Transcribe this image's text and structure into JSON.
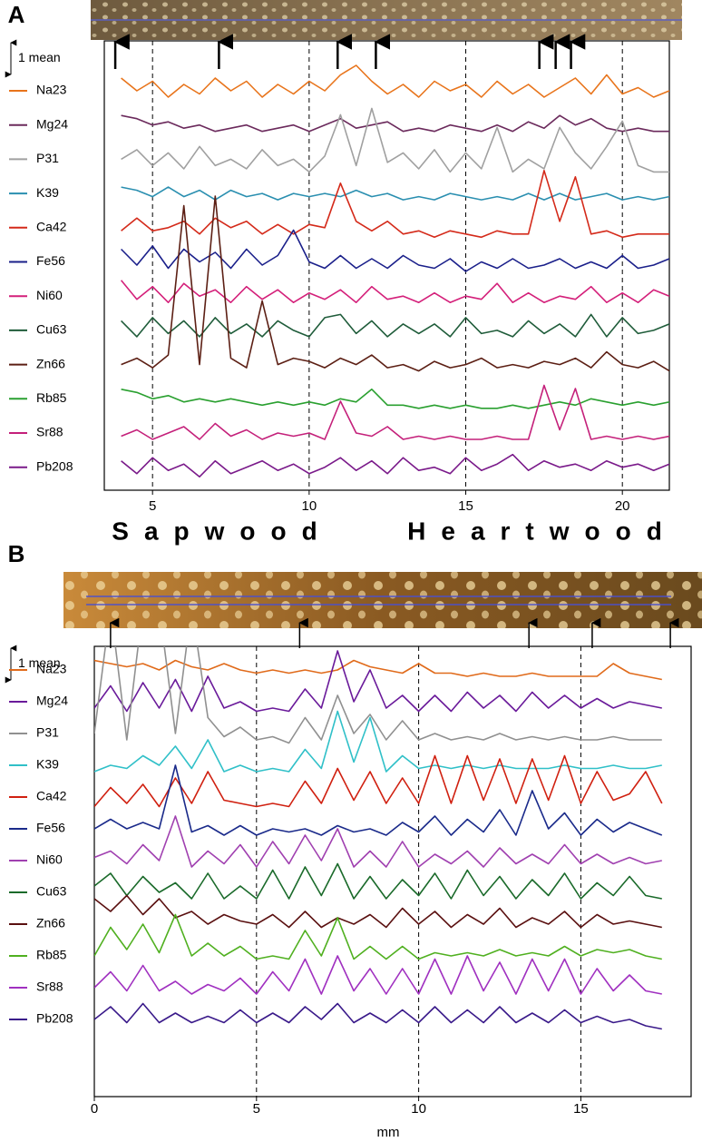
{
  "chart_data": [
    {
      "type": "line",
      "title": "A",
      "scale_bar": {
        "value": 1,
        "label": "1 mean"
      },
      "xlim": [
        3.46,
        21.5
      ],
      "xticks": [
        5,
        10,
        15,
        20
      ],
      "grid": true,
      "arrows": [
        3.81,
        7.12,
        10.91,
        12.13,
        17.35,
        17.87,
        18.36
      ],
      "x": [
        4,
        4.5,
        5,
        5.5,
        6,
        6.5,
        7,
        7.5,
        8,
        8.5,
        9,
        9.5,
        10,
        10.5,
        11,
        11.5,
        12,
        12.5,
        13,
        13.5,
        14,
        14.5,
        15,
        15.5,
        16,
        16.5,
        17,
        17.5,
        18,
        18.5,
        19,
        19.5,
        20,
        20.5,
        21,
        21.5
      ],
      "series": [
        {
          "name": "Na23",
          "color": "#e8741b",
          "values": [
            1.4,
            1.0,
            1.3,
            0.8,
            1.2,
            0.9,
            1.4,
            1.0,
            1.3,
            0.8,
            1.2,
            0.9,
            1.3,
            1.0,
            1.5,
            1.8,
            1.3,
            0.9,
            1.2,
            0.8,
            1.3,
            1.0,
            1.2,
            0.8,
            1.3,
            0.9,
            1.2,
            0.8,
            1.1,
            1.4,
            0.9,
            1.5,
            0.9,
            1.1,
            0.8,
            1.0
          ]
        },
        {
          "name": "Mg24",
          "color": "#6b2a5c",
          "values": [
            1.3,
            1.2,
            1.0,
            1.1,
            0.9,
            1.0,
            0.8,
            0.9,
            1.0,
            0.8,
            0.9,
            1.0,
            0.8,
            1.0,
            1.2,
            0.9,
            1.0,
            1.1,
            0.8,
            0.9,
            0.8,
            1.0,
            0.9,
            0.8,
            1.0,
            0.8,
            1.1,
            0.9,
            1.3,
            1.0,
            1.2,
            0.9,
            0.8,
            0.9,
            0.8,
            0.8
          ]
        },
        {
          "name": "P31",
          "color": "#a0a0a0",
          "values": [
            1.0,
            1.3,
            0.8,
            1.2,
            0.7,
            1.4,
            0.8,
            1.0,
            0.7,
            1.3,
            0.8,
            1.0,
            0.6,
            1.1,
            2.4,
            0.8,
            2.6,
            0.9,
            1.2,
            0.7,
            1.3,
            0.6,
            1.2,
            0.7,
            2.0,
            0.6,
            1.0,
            0.7,
            2.0,
            1.2,
            0.7,
            1.4,
            2.2,
            0.8,
            0.6,
            0.6
          ]
        },
        {
          "name": "K39",
          "color": "#2a8fb0",
          "values": [
            1.2,
            1.1,
            0.9,
            1.2,
            0.9,
            1.1,
            0.8,
            1.1,
            0.9,
            1.0,
            0.8,
            1.0,
            0.9,
            1.0,
            0.9,
            1.1,
            0.9,
            1.0,
            0.8,
            0.9,
            0.8,
            1.0,
            0.9,
            0.8,
            0.9,
            0.8,
            1.0,
            0.8,
            1.0,
            0.8,
            0.9,
            1.0,
            0.8,
            0.9,
            0.8,
            0.9
          ]
        },
        {
          "name": "Ca42",
          "color": "#d42a1a",
          "values": [
            0.9,
            1.3,
            0.9,
            1.0,
            1.2,
            0.8,
            1.3,
            1.0,
            1.2,
            0.8,
            1.1,
            0.8,
            1.1,
            1.0,
            2.4,
            1.2,
            0.9,
            1.2,
            0.8,
            0.9,
            0.7,
            0.9,
            0.8,
            0.7,
            0.9,
            0.8,
            0.8,
            2.8,
            1.2,
            2.6,
            0.8,
            0.9,
            0.7,
            0.8,
            0.8,
            0.8
          ]
        },
        {
          "name": "Fe56",
          "color": "#1a1f8a",
          "values": [
            1.4,
            0.9,
            1.5,
            0.8,
            1.4,
            1.0,
            1.3,
            0.8,
            1.4,
            0.9,
            1.2,
            2.0,
            1.0,
            0.8,
            1.2,
            0.8,
            1.1,
            0.8,
            1.2,
            0.9,
            0.8,
            1.1,
            0.7,
            1.0,
            0.8,
            1.1,
            0.8,
            0.9,
            1.1,
            0.8,
            1.0,
            0.8,
            1.2,
            0.8,
            0.9,
            1.1
          ]
        },
        {
          "name": "Ni60",
          "color": "#d4207a",
          "values": [
            1.5,
            0.9,
            1.3,
            0.8,
            1.4,
            1.0,
            1.2,
            0.8,
            1.3,
            0.9,
            1.2,
            0.8,
            1.1,
            0.9,
            1.2,
            0.8,
            1.3,
            0.9,
            1.0,
            0.8,
            1.1,
            0.8,
            1.0,
            0.9,
            1.4,
            0.8,
            1.1,
            0.8,
            1.0,
            0.9,
            1.3,
            0.8,
            1.1,
            0.8,
            1.2,
            1.0
          ]
        },
        {
          "name": "Cu63",
          "color": "#1f5c3a",
          "values": [
            1.3,
            0.8,
            1.4,
            0.9,
            1.3,
            0.8,
            1.4,
            0.9,
            1.2,
            0.8,
            1.3,
            1.0,
            0.8,
            1.4,
            1.5,
            0.9,
            1.3,
            0.8,
            1.2,
            0.9,
            1.2,
            0.8,
            1.4,
            0.9,
            1.0,
            0.8,
            1.3,
            0.9,
            1.2,
            0.8,
            1.5,
            0.8,
            1.4,
            0.9,
            1.0,
            1.2
          ]
        },
        {
          "name": "Zn66",
          "color": "#5c1f14",
          "values": [
            1.0,
            1.2,
            0.9,
            1.3,
            6.0,
            1.0,
            6.3,
            1.2,
            0.9,
            3.0,
            1.0,
            1.2,
            1.1,
            0.9,
            1.2,
            1.0,
            1.3,
            0.9,
            1.0,
            0.8,
            1.1,
            0.9,
            1.0,
            1.2,
            0.9,
            1.0,
            0.9,
            1.1,
            1.0,
            1.2,
            0.9,
            1.4,
            1.0,
            0.9,
            1.1,
            0.8
          ]
        },
        {
          "name": "Rb85",
          "color": "#2aa030",
          "values": [
            1.3,
            1.2,
            1.0,
            1.1,
            0.9,
            1.0,
            0.9,
            1.0,
            0.9,
            0.8,
            0.9,
            0.8,
            0.9,
            0.8,
            1.0,
            0.9,
            1.3,
            0.8,
            0.8,
            0.7,
            0.8,
            0.7,
            0.8,
            0.7,
            0.7,
            0.8,
            0.7,
            0.8,
            0.9,
            0.8,
            1.0,
            0.9,
            0.8,
            0.9,
            0.8,
            0.9
          ]
        },
        {
          "name": "Sr88",
          "color": "#c4207a",
          "values": [
            0.9,
            1.1,
            0.8,
            1.0,
            1.2,
            0.8,
            1.3,
            0.9,
            1.1,
            0.8,
            1.0,
            0.9,
            1.0,
            0.8,
            2.0,
            1.0,
            0.9,
            1.2,
            0.8,
            0.9,
            0.8,
            0.9,
            0.8,
            0.8,
            0.9,
            0.8,
            0.8,
            2.5,
            1.1,
            2.4,
            0.8,
            0.9,
            0.8,
            0.9,
            0.8,
            0.9
          ]
        },
        {
          "name": "Pb208",
          "color": "#7a1a8a",
          "values": [
            1.2,
            0.8,
            1.3,
            0.9,
            1.1,
            0.7,
            1.2,
            0.8,
            1.0,
            1.2,
            0.9,
            1.1,
            0.8,
            1.0,
            1.3,
            0.9,
            1.2,
            0.8,
            1.3,
            0.9,
            1.0,
            0.8,
            1.3,
            0.9,
            1.1,
            1.4,
            0.9,
            1.2,
            1.0,
            1.1,
            0.9,
            1.2,
            1.0,
            1.1,
            0.9,
            1.1
          ]
        }
      ]
    },
    {
      "type": "line",
      "title": "B",
      "photo_labels": [
        "Sapwood",
        "Heartwood"
      ],
      "scale_bar": {
        "value": 1,
        "label": "1 mean"
      },
      "xlabel": "mm",
      "xlim": [
        0,
        18.4
      ],
      "xticks": [
        0,
        5,
        10,
        15
      ],
      "grid": true,
      "arrows": [
        0.5,
        6.33,
        13.4,
        15.35,
        17.76
      ],
      "x": [
        0,
        0.5,
        1,
        1.5,
        2,
        2.5,
        3,
        3.5,
        4,
        4.5,
        5,
        5.5,
        6,
        6.5,
        7,
        7.5,
        8,
        8.5,
        9,
        9.5,
        10,
        10.5,
        11,
        11.5,
        12,
        12.5,
        13,
        13.5,
        14,
        14.5,
        15,
        15.5,
        16,
        16.5,
        17,
        17.5
      ],
      "series": [
        {
          "name": "Na23",
          "color": "#e06a1a",
          "values": [
            1.3,
            1.2,
            1.1,
            1.2,
            1.0,
            1.3,
            1.1,
            1.0,
            1.2,
            1.0,
            0.9,
            1.0,
            0.9,
            1.0,
            0.9,
            1.0,
            1.3,
            1.1,
            1.0,
            0.9,
            1.2,
            0.9,
            0.9,
            0.8,
            0.9,
            0.8,
            0.8,
            0.9,
            0.8,
            0.8,
            0.8,
            0.8,
            1.2,
            0.9,
            0.8,
            0.7
          ]
        },
        {
          "name": "Mg24",
          "color": "#6a1a9a",
          "values": [
            0.8,
            1.5,
            0.7,
            1.6,
            0.8,
            1.7,
            0.7,
            1.8,
            0.8,
            1.0,
            0.7,
            0.8,
            0.7,
            1.4,
            0.8,
            2.6,
            1.0,
            2.0,
            0.8,
            1.2,
            0.7,
            1.2,
            0.7,
            1.3,
            0.8,
            1.2,
            0.7,
            1.3,
            0.8,
            1.2,
            0.8,
            1.1,
            0.8,
            1.0,
            0.9,
            0.8
          ]
        },
        {
          "name": "P31",
          "color": "#909090",
          "values": [
            1.0,
            5.0,
            0.8,
            5.0,
            5.0,
            1.0,
            5.0,
            1.5,
            0.9,
            1.2,
            0.8,
            0.9,
            0.7,
            1.5,
            0.8,
            2.2,
            1.0,
            1.6,
            0.8,
            1.4,
            0.8,
            1.0,
            0.8,
            0.9,
            0.8,
            1.0,
            0.8,
            0.9,
            0.8,
            0.9,
            0.8,
            0.8,
            0.9,
            0.8,
            0.8,
            0.8
          ]
        },
        {
          "name": "K39",
          "color": "#30c0c8",
          "values": [
            0.8,
            1.0,
            0.9,
            1.3,
            1.0,
            1.6,
            0.9,
            1.8,
            0.8,
            1.0,
            0.8,
            0.9,
            0.8,
            1.5,
            0.9,
            2.7,
            1.1,
            2.5,
            0.8,
            1.3,
            0.9,
            1.0,
            0.9,
            1.0,
            0.9,
            1.0,
            0.9,
            0.9,
            0.9,
            1.0,
            0.9,
            0.9,
            1.0,
            0.9,
            0.9,
            1.0
          ]
        },
        {
          "name": "Ca42",
          "color": "#d02010",
          "values": [
            0.7,
            1.3,
            0.8,
            1.4,
            0.7,
            1.6,
            0.8,
            1.8,
            0.9,
            0.8,
            0.7,
            0.8,
            0.7,
            1.5,
            0.8,
            1.9,
            0.9,
            1.8,
            0.8,
            1.6,
            0.8,
            2.3,
            0.8,
            2.3,
            0.9,
            2.2,
            0.8,
            2.2,
            0.9,
            2.3,
            0.8,
            1.8,
            0.9,
            1.1,
            1.8,
            0.8
          ]
        },
        {
          "name": "Fe56",
          "color": "#1a2a8a",
          "values": [
            1.0,
            1.3,
            1.0,
            1.2,
            1.0,
            3.0,
            0.9,
            1.1,
            0.8,
            1.1,
            0.8,
            1.0,
            0.9,
            1.0,
            0.8,
            1.1,
            0.9,
            1.0,
            0.8,
            1.2,
            0.9,
            1.4,
            0.8,
            1.3,
            0.9,
            1.6,
            0.8,
            2.2,
            1.0,
            1.5,
            0.8,
            1.3,
            0.9,
            1.2,
            1.0,
            0.8
          ]
        },
        {
          "name": "Ni60",
          "color": "#a040b0",
          "values": [
            1.1,
            1.3,
            0.9,
            1.5,
            1.0,
            2.4,
            0.8,
            1.3,
            0.9,
            1.5,
            0.8,
            1.6,
            0.9,
            1.8,
            1.0,
            2.0,
            0.8,
            1.3,
            0.8,
            1.6,
            0.8,
            1.2,
            0.9,
            1.3,
            0.8,
            1.4,
            0.9,
            1.2,
            0.9,
            1.5,
            0.9,
            1.2,
            0.9,
            1.1,
            0.9,
            1.0
          ]
        },
        {
          "name": "Cu63",
          "color": "#1a6a2a",
          "values": [
            1.2,
            1.6,
            0.9,
            1.5,
            1.0,
            1.3,
            0.8,
            1.6,
            0.8,
            1.2,
            0.8,
            1.7,
            0.8,
            1.8,
            0.9,
            1.9,
            0.8,
            1.5,
            0.8,
            1.4,
            0.9,
            1.6,
            0.8,
            1.7,
            0.9,
            1.5,
            0.8,
            1.4,
            0.9,
            1.6,
            0.8,
            1.3,
            0.9,
            1.5,
            0.9,
            0.8
          ]
        },
        {
          "name": "Zn66",
          "color": "#5a1010",
          "values": [
            1.8,
            1.4,
            1.9,
            1.3,
            1.8,
            1.2,
            1.4,
            1.0,
            1.3,
            1.1,
            1.0,
            1.3,
            0.9,
            1.4,
            0.9,
            1.2,
            1.0,
            1.3,
            0.9,
            1.5,
            1.0,
            1.4,
            0.9,
            1.3,
            1.0,
            1.5,
            0.9,
            1.2,
            1.0,
            1.4,
            0.9,
            1.3,
            1.0,
            1.1,
            1.0,
            0.9
          ]
        },
        {
          "name": "Rb85",
          "color": "#50b020",
          "values": [
            1.0,
            1.9,
            1.2,
            2.0,
            1.1,
            2.3,
            1.0,
            1.4,
            1.0,
            1.3,
            0.9,
            1.0,
            0.9,
            1.8,
            1.0,
            2.2,
            0.9,
            1.3,
            0.9,
            1.3,
            0.9,
            1.1,
            1.0,
            1.1,
            1.0,
            1.2,
            1.0,
            1.1,
            1.0,
            1.3,
            1.0,
            1.2,
            1.1,
            1.2,
            1.0,
            0.9
          ]
        },
        {
          "name": "Sr88",
          "color": "#a030c0",
          "values": [
            1.0,
            1.5,
            0.9,
            1.7,
            0.9,
            1.2,
            0.8,
            1.1,
            0.9,
            1.3,
            0.8,
            1.5,
            0.9,
            1.9,
            0.8,
            2.0,
            0.9,
            1.6,
            0.8,
            1.6,
            0.8,
            1.9,
            0.8,
            2.0,
            0.9,
            1.8,
            0.8,
            1.9,
            0.9,
            1.9,
            0.8,
            1.6,
            0.9,
            1.4,
            0.9,
            0.8
          ]
        },
        {
          "name": "Pb208",
          "color": "#3a1a8a",
          "values": [
            1.0,
            1.4,
            0.9,
            1.5,
            0.9,
            1.2,
            0.9,
            1.1,
            0.9,
            1.3,
            0.9,
            1.2,
            0.9,
            1.4,
            1.0,
            1.5,
            0.9,
            1.2,
            0.9,
            1.3,
            0.9,
            1.4,
            0.9,
            1.3,
            0.9,
            1.4,
            0.9,
            1.2,
            0.9,
            1.3,
            0.9,
            1.1,
            0.9,
            1.0,
            0.8,
            0.7
          ]
        }
      ]
    }
  ]
}
